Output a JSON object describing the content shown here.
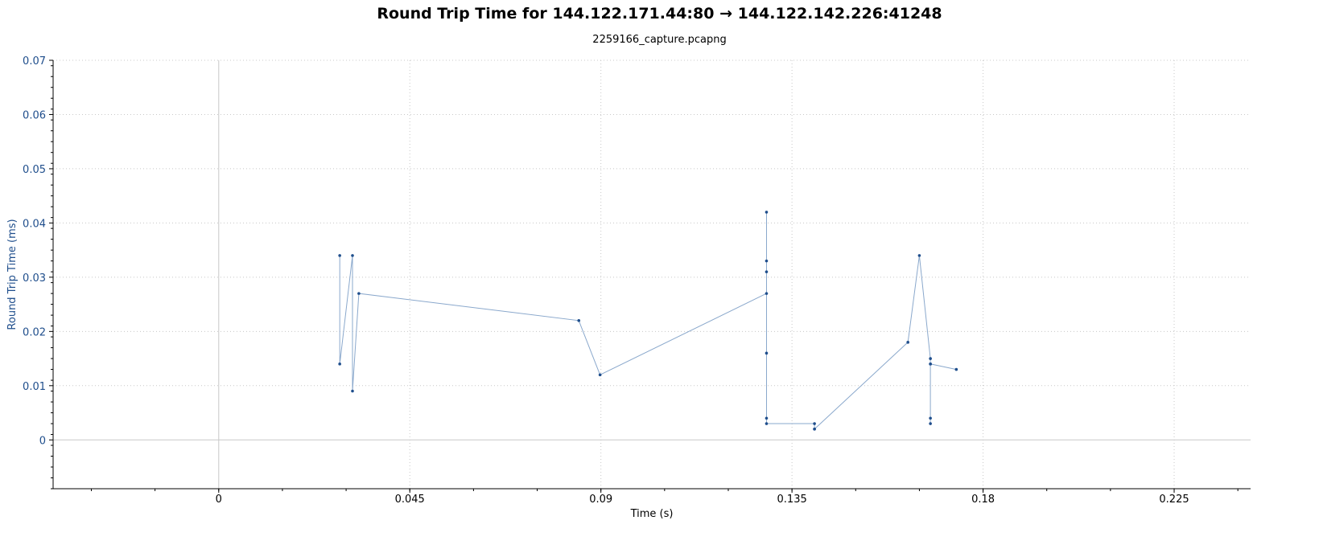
{
  "chart_data": {
    "type": "line",
    "title": "Round Trip Time for 144.122.171.44:80 → 144.122.142.226:41248",
    "subtitle": "2259166_capture.pcapng",
    "xlabel": "Time (s)",
    "ylabel": "Round Trip Time (ms)",
    "xlim": [
      -0.039,
      0.243
    ],
    "ylim": [
      -0.009,
      0.07
    ],
    "xticks": [
      0,
      0.045,
      0.09,
      0.135,
      0.18,
      0.225
    ],
    "xtick_labels": [
      "0",
      "0.045",
      "0.09",
      "0.135",
      "0.18",
      "0.225"
    ],
    "yticks": [
      0,
      0.01,
      0.02,
      0.03,
      0.04,
      0.05,
      0.06,
      0.07
    ],
    "ytick_labels": [
      "0",
      "0.01",
      "0.02",
      "0.03",
      "0.04",
      "0.05",
      "0.06",
      "0.07"
    ],
    "grid": true,
    "colors": {
      "series": "#1f4e8c",
      "line": "#8aa8cc",
      "grid": "#c8c8c8",
      "axis_text": "#1f4e8c"
    },
    "series": [
      {
        "x": [
          0.0285,
          0.0285,
          0.0315,
          0.0315,
          0.033,
          0.0848,
          0.0898,
          0.129,
          0.129,
          0.129,
          0.129,
          0.129,
          0.129,
          0.129,
          0.1403,
          0.1403,
          0.1403,
          0.1623,
          0.165,
          0.1676,
          0.1676,
          0.1676,
          0.1676,
          0.1676,
          0.1737
        ],
        "y": [
          0.034,
          0.014,
          0.034,
          0.009,
          0.027,
          0.022,
          0.012,
          0.027,
          0.042,
          0.033,
          0.031,
          0.016,
          0.004,
          0.003,
          0.003,
          0.002,
          0.002,
          0.018,
          0.034,
          0.015,
          0.014,
          0.004,
          0.003,
          0.014,
          0.013
        ]
      }
    ]
  }
}
